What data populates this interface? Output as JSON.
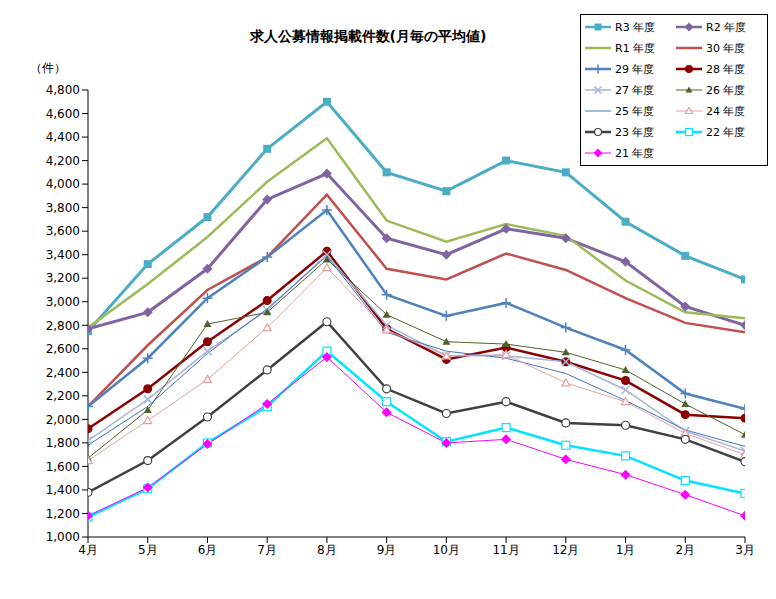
{
  "chart_data": {
    "type": "line",
    "title": "求人公募情報掲載件数(月毎の平均値)",
    "y_label": "（件）",
    "categories": [
      "4月",
      "5月",
      "6月",
      "7月",
      "8月",
      "9月",
      "10月",
      "11月",
      "12月",
      "1月",
      "2月",
      "3月"
    ],
    "ylim": [
      1000,
      4800
    ],
    "yticks": [
      {
        "value": 1000,
        "label": "1,000"
      },
      {
        "value": 1200,
        "label": "1,200"
      },
      {
        "value": 1400,
        "label": "1,400"
      },
      {
        "value": 1600,
        "label": "1,600"
      },
      {
        "value": 1800,
        "label": "1,800"
      },
      {
        "value": 2000,
        "label": "2,000"
      },
      {
        "value": 2200,
        "label": "2,200"
      },
      {
        "value": 2400,
        "label": "2,400"
      },
      {
        "value": 2600,
        "label": "2,600"
      },
      {
        "value": 2800,
        "label": "2,800"
      },
      {
        "value": 3000,
        "label": "3,000"
      },
      {
        "value": 3200,
        "label": "3,200"
      },
      {
        "value": 3400,
        "label": "3,400"
      },
      {
        "value": 3600,
        "label": "3,600"
      },
      {
        "value": 3800,
        "label": "3,800"
      },
      {
        "value": 4000,
        "label": "4,000"
      },
      {
        "value": 4200,
        "label": "4,200"
      },
      {
        "value": 4400,
        "label": "4,400"
      },
      {
        "value": 4600,
        "label": "4,600"
      },
      {
        "value": 4800,
        "label": "4,800"
      }
    ],
    "grid": false,
    "legend": "top-right",
    "series": [
      {
        "name": "R3 年度",
        "color": "#4bacc6",
        "marker": "square",
        "values": [
          2750,
          3320,
          3720,
          4300,
          4700,
          4100,
          3940,
          4200,
          4100,
          3680,
          3390,
          3190
        ]
      },
      {
        "name": "R2 年度",
        "color": "#8064a2",
        "marker": "diamond",
        "values": [
          2770,
          2910,
          3280,
          3870,
          4090,
          3540,
          3400,
          3620,
          3540,
          3340,
          2960,
          2800
        ]
      },
      {
        "name": "R1 年度",
        "color": "#9bbb59",
        "marker": "none",
        "values": [
          2780,
          3150,
          3550,
          4020,
          4390,
          3690,
          3510,
          3660,
          3560,
          3180,
          2910,
          2860
        ]
      },
      {
        "name": "30 年度",
        "color": "#c0504d",
        "marker": "none",
        "values": [
          2110,
          2630,
          3100,
          3380,
          3910,
          3280,
          3190,
          3410,
          3270,
          3030,
          2820,
          2740
        ]
      },
      {
        "name": "29 年度",
        "color": "#4f81bd",
        "marker": "plus",
        "values": [
          2110,
          2520,
          3030,
          3380,
          3780,
          3060,
          2880,
          2990,
          2780,
          2590,
          2220,
          2090
        ]
      },
      {
        "name": "28 年度",
        "color": "#8b0000",
        "marker": "circle",
        "values": [
          1920,
          2260,
          2660,
          3010,
          3430,
          2770,
          2510,
          2610,
          2490,
          2330,
          2040,
          2010
        ]
      },
      {
        "name": "27 年度",
        "color": "#a5b6d9",
        "marker": "cross",
        "values": [
          1820,
          2170,
          2580,
          2930,
          3400,
          2800,
          2540,
          2540,
          2490,
          2250,
          1900,
          1730
        ]
      },
      {
        "name": "26 年度",
        "color": "#4f6228",
        "marker": "triangle",
        "values": [
          1670,
          2080,
          2810,
          2910,
          3360,
          2890,
          2660,
          2640,
          2570,
          2420,
          2130,
          1870
        ]
      },
      {
        "name": "25 年度",
        "color": "#4472c4",
        "marker": "none",
        "values": [
          1780,
          2110,
          2560,
          2940,
          3390,
          2740,
          2580,
          2520,
          2390,
          2160,
          1910,
          1770
        ]
      },
      {
        "name": "24 年度",
        "color": "#e6a0a0",
        "marker": "open_triangle",
        "values": [
          1650,
          1990,
          2340,
          2780,
          3290,
          2760,
          2540,
          2550,
          2310,
          2150,
          1880,
          1700
        ]
      },
      {
        "name": "23 年度",
        "color": "#404040",
        "marker": "open_circle",
        "values": [
          1380,
          1650,
          2020,
          2420,
          2830,
          2260,
          2050,
          2150,
          1970,
          1950,
          1830,
          1640
        ]
      },
      {
        "name": "22 年度",
        "color": "#00e5ff",
        "marker": "open_square",
        "values": [
          1170,
          1410,
          1800,
          2110,
          2580,
          2150,
          1810,
          1930,
          1780,
          1690,
          1480,
          1370
        ]
      },
      {
        "name": "21 年度",
        "color": "#ff00ff",
        "marker": "diamond",
        "values": [
          1180,
          1420,
          1790,
          2130,
          2530,
          2060,
          1800,
          1830,
          1660,
          1530,
          1360,
          1180
        ]
      }
    ]
  }
}
